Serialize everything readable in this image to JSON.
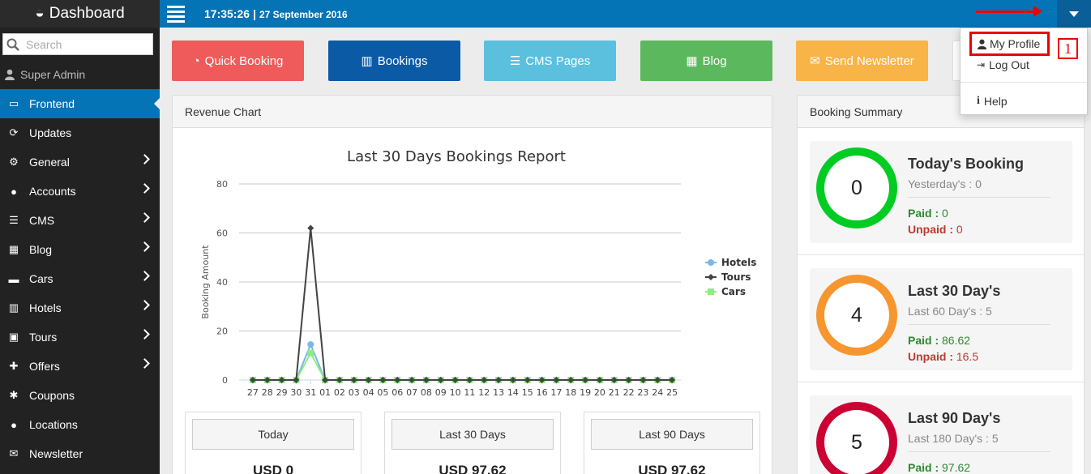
{
  "sidebar": {
    "brand": "Dashboard",
    "search_placeholder": "Search",
    "user": "Super Admin",
    "items": [
      {
        "label": "Frontend",
        "icon": "laptop-icon",
        "glyph": "▭",
        "active": true,
        "chev": false
      },
      {
        "label": "Updates",
        "icon": "refresh-icon",
        "glyph": "⟳",
        "active": false,
        "chev": false
      },
      {
        "label": "General",
        "icon": "cogs-icon",
        "glyph": "⚙",
        "active": false,
        "chev": true
      },
      {
        "label": "Accounts",
        "icon": "user-icon",
        "glyph": "●",
        "active": false,
        "chev": true
      },
      {
        "label": "CMS",
        "icon": "list-icon",
        "glyph": "☰",
        "active": false,
        "chev": true
      },
      {
        "label": "Blog",
        "icon": "grid-icon",
        "glyph": "▦",
        "active": false,
        "chev": true
      },
      {
        "label": "Cars",
        "icon": "car-icon",
        "glyph": "▬",
        "active": false,
        "chev": true
      },
      {
        "label": "Hotels",
        "icon": "building-icon",
        "glyph": "▥",
        "active": false,
        "chev": true
      },
      {
        "label": "Tours",
        "icon": "suitcase-icon",
        "glyph": "▣",
        "active": false,
        "chev": true
      },
      {
        "label": "Offers",
        "icon": "gift-icon",
        "glyph": "✚",
        "active": false,
        "chev": true
      },
      {
        "label": "Coupons",
        "icon": "asterisk-icon",
        "glyph": "✱",
        "active": false,
        "chev": false
      },
      {
        "label": "Locations",
        "icon": "map-marker-icon",
        "glyph": "●",
        "active": false,
        "chev": false
      },
      {
        "label": "Newsletter",
        "icon": "envelope-icon",
        "glyph": "✉",
        "active": false,
        "chev": false
      }
    ]
  },
  "topbar": {
    "time": "17:35:26",
    "separator": "|",
    "date": "27 September 2016"
  },
  "dropdown": {
    "profile": "My Profile",
    "logout": "Log Out",
    "help": "Help",
    "annotation": "1"
  },
  "quick_buttons": [
    {
      "label": "Quick Booking",
      "icon": "dashboard-icon",
      "color": "#ef5b5b"
    },
    {
      "label": "Bookings",
      "icon": "bar-chart-icon",
      "color": "#0b5aa6"
    },
    {
      "label": "CMS Pages",
      "icon": "list-alt-icon",
      "color": "#5bc0de"
    },
    {
      "label": "Blog",
      "icon": "th-large-icon",
      "color": "#5cb85c"
    },
    {
      "label": "Send Newsletter",
      "icon": "envelope-icon",
      "color": "#f8b447"
    }
  ],
  "revenue": {
    "panel_title": "Revenue Chart",
    "stats": [
      {
        "label": "Today",
        "value": "USD 0"
      },
      {
        "label": "Last 30 Days",
        "value": "USD 97.62"
      },
      {
        "label": "Last 90 Days",
        "value": "USD 97.62"
      }
    ]
  },
  "chart_data": {
    "type": "line",
    "title": "Last 30 Days Bookings Report",
    "ylabel": "Booking Amount",
    "xlabel": "",
    "ylim": [
      0,
      80
    ],
    "yticks": [
      0,
      20,
      40,
      60,
      80
    ],
    "categories": [
      "27",
      "28",
      "29",
      "30",
      "31",
      "01",
      "02",
      "03",
      "04",
      "05",
      "06",
      "07",
      "08",
      "09",
      "10",
      "11",
      "12",
      "13",
      "14",
      "15",
      "16",
      "17",
      "18",
      "19",
      "20",
      "21",
      "22",
      "23",
      "24",
      "25"
    ],
    "legend_position": "right",
    "grid": true,
    "series": [
      {
        "name": "Hotels",
        "color": "#7cb5ec",
        "marker": "circle",
        "values": [
          0,
          0,
          0,
          0,
          14.5,
          0,
          0,
          0,
          0,
          0,
          0,
          0,
          0,
          0,
          0,
          0,
          0,
          0,
          0,
          0,
          0,
          0,
          0,
          0,
          0,
          0,
          0,
          0,
          0,
          0
        ]
      },
      {
        "name": "Tours",
        "color": "#434348",
        "marker": "diamond",
        "values": [
          0,
          0,
          0,
          0,
          62,
          0,
          0,
          0,
          0,
          0,
          0,
          0,
          0,
          0,
          0,
          0,
          0,
          0,
          0,
          0,
          0,
          0,
          0,
          0,
          0,
          0,
          0,
          0,
          0,
          0
        ]
      },
      {
        "name": "Cars",
        "color": "#90ed7d",
        "marker": "square",
        "values": [
          0,
          0,
          0,
          0,
          11,
          0,
          0,
          0,
          0,
          0,
          0,
          0,
          0,
          0,
          0,
          0,
          0,
          0,
          0,
          0,
          0,
          0,
          0,
          0,
          0,
          0,
          0,
          0,
          0,
          0
        ]
      }
    ]
  },
  "summary": {
    "panel_title": "Booking Summary",
    "paid_label": "Paid :",
    "unpaid_label": "Unpaid :",
    "cards": [
      {
        "title": "Today's Booking",
        "count": "0",
        "sub": "Yesterday's : 0",
        "paid": "0",
        "unpaid": "0",
        "ring_color": "#00cc22"
      },
      {
        "title": "Last 30 Day's",
        "count": "4",
        "sub": "Last 60 Day's : 5",
        "paid": "86.62",
        "unpaid": "16.5",
        "ring_color": "#f7952e"
      },
      {
        "title": "Last 90 Day's",
        "count": "5",
        "sub": "Last 180 Day's : 5",
        "paid": "97.62",
        "unpaid": "",
        "ring_color": "#cc0033"
      }
    ]
  }
}
